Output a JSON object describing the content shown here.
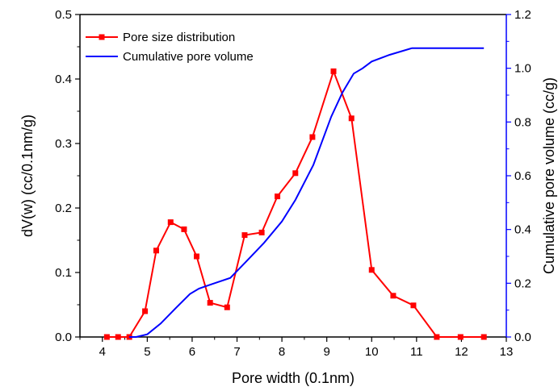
{
  "chart_data": {
    "type": "line",
    "xlabel": "Pore width (0.1nm)",
    "ylabel": "dV(w) (cc/0.1nm/g)",
    "y2label": "Cumulative pore volume (cc/g)",
    "xlim": [
      3.5,
      13
    ],
    "ylim": [
      0,
      0.5
    ],
    "y2lim": [
      0,
      1.2
    ],
    "xticks": [
      "4",
      "5",
      "6",
      "7",
      "8",
      "9",
      "10",
      "11",
      "12",
      "13"
    ],
    "yticks": [
      "0.0",
      "0.1",
      "0.2",
      "0.3",
      "0.4",
      "0.5"
    ],
    "y2ticks": [
      "0.0",
      "0.2",
      "0.4",
      "0.6",
      "0.8",
      "1.0",
      "1.2"
    ],
    "legend_position": "top-left",
    "grid": false,
    "series": [
      {
        "name": "Pore size distribution",
        "axis": "left",
        "color": "#ff0000",
        "marker": "square",
        "x": [
          4.1,
          4.35,
          4.6,
          4.95,
          5.2,
          5.52,
          5.82,
          6.1,
          6.4,
          6.78,
          7.17,
          7.55,
          7.9,
          8.3,
          8.68,
          9.15,
          9.55,
          10.0,
          10.48,
          10.93,
          11.45,
          11.98,
          12.5
        ],
        "y": [
          0.0,
          0.0,
          0.0,
          0.04,
          0.134,
          0.178,
          0.167,
          0.125,
          0.053,
          0.046,
          0.158,
          0.162,
          0.218,
          0.254,
          0.31,
          0.412,
          0.339,
          0.104,
          0.064,
          0.049,
          0.0,
          0.0,
          0.0
        ]
      },
      {
        "name": "Cumulative pore volume",
        "axis": "right",
        "color": "#0000ff",
        "marker": "none",
        "x": [
          4.6,
          4.75,
          5.0,
          5.3,
          5.65,
          5.95,
          6.15,
          6.5,
          6.85,
          7.2,
          7.6,
          8.0,
          8.3,
          8.7,
          9.1,
          9.35,
          9.6,
          9.8,
          10.0,
          10.4,
          10.9,
          11.5,
          12.0,
          12.5
        ],
        "y": [
          0.0,
          0.0,
          0.01,
          0.05,
          0.11,
          0.16,
          0.18,
          0.2,
          0.22,
          0.28,
          0.35,
          0.43,
          0.51,
          0.64,
          0.82,
          0.91,
          0.98,
          1.0,
          1.025,
          1.05,
          1.075,
          1.075,
          1.075,
          1.075
        ]
      }
    ]
  },
  "colors": {
    "left_axis": "#000000",
    "right_axis": "#0000ff"
  }
}
